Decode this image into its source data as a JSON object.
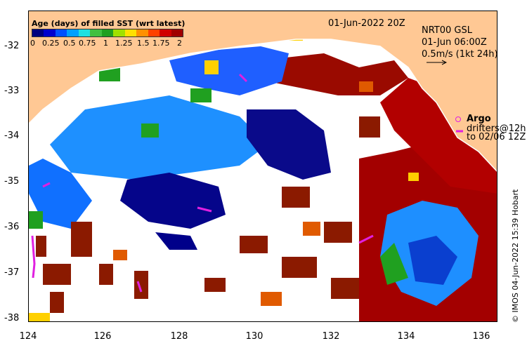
{
  "map": {
    "title": "01-Jun-2022 20Z",
    "lat_ticks": [
      "-32",
      "-33",
      "-34",
      "-35",
      "-36",
      "-37",
      "-38"
    ],
    "lon_ticks": [
      "124",
      "126",
      "128",
      "130",
      "132",
      "134",
      "136"
    ]
  },
  "legend": {
    "title": "Age (days) of filled SST (wrt latest)",
    "tick_labels": [
      "0",
      "0.25",
      "0.5",
      "0.75",
      "1",
      "1.25",
      "1.5",
      "1.75",
      "2"
    ],
    "colors": [
      "#00007f",
      "#0000cd",
      "#0050ff",
      "#00a0ff",
      "#20e0e0",
      "#40c040",
      "#20a020",
      "#a0e000",
      "#ffe000",
      "#ff9000",
      "#ff4000",
      "#d00000",
      "#a00000"
    ]
  },
  "info": {
    "line1": "NRT00 GSL",
    "line2": "01-Jun 06:00Z",
    "line3": "0.5m/s (1kt 24h)"
  },
  "overlay": {
    "argo_label": "Argo",
    "drifter_line1": "drifters@12h",
    "drifter_line2": "to 02/06 12Z"
  },
  "credit": "© IMOS 04-Jun-2022 15:39 Hobart",
  "colors": {
    "land": "#ffc894",
    "ocean_missing": "#ffffff"
  }
}
